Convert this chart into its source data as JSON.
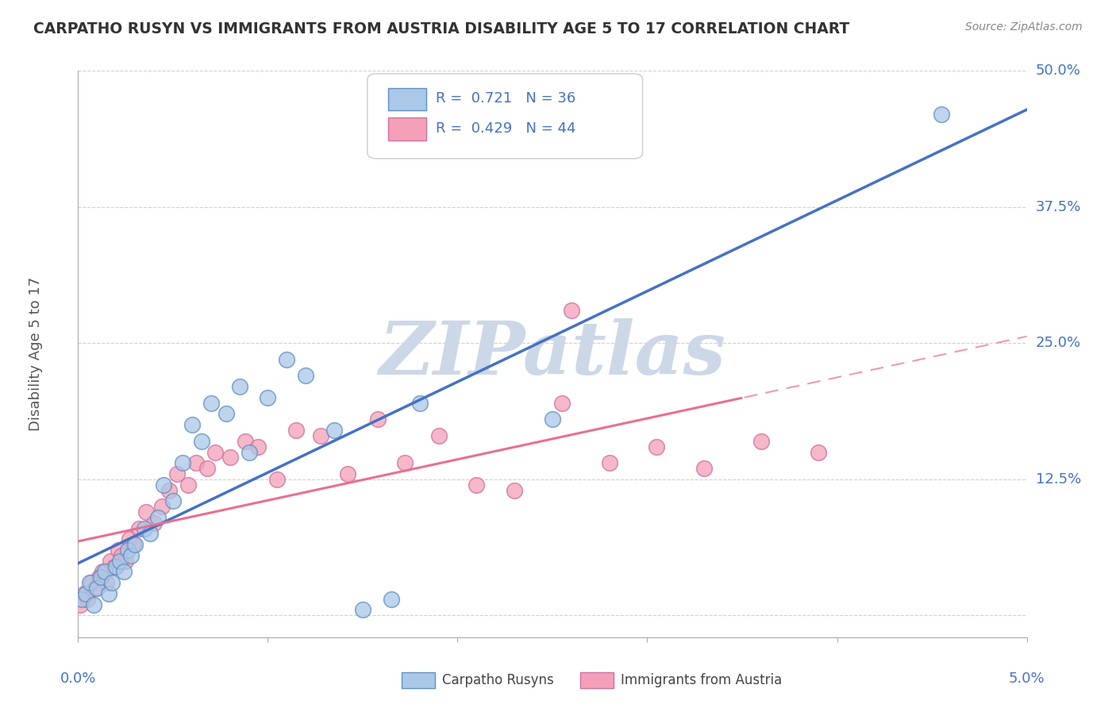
{
  "title": "CARPATHO RUSYN VS IMMIGRANTS FROM AUSTRIA DISABILITY AGE 5 TO 17 CORRELATION CHART",
  "source": "Source: ZipAtlas.com",
  "ylabel": "Disability Age 5 to 17",
  "x_min": 0.0,
  "x_max": 5.0,
  "y_min": -2.0,
  "y_max": 50.0,
  "y_ticks": [
    0.0,
    12.5,
    25.0,
    37.5,
    50.0
  ],
  "y_tick_labels": [
    "",
    "12.5%",
    "25.0%",
    "37.5%",
    "50.0%"
  ],
  "blue_scatter_x": [
    0.02,
    0.04,
    0.06,
    0.08,
    0.1,
    0.12,
    0.14,
    0.16,
    0.18,
    0.2,
    0.22,
    0.24,
    0.26,
    0.28,
    0.3,
    0.35,
    0.38,
    0.42,
    0.45,
    0.5,
    0.55,
    0.6,
    0.65,
    0.7,
    0.78,
    0.85,
    0.9,
    1.0,
    1.1,
    1.2,
    1.35,
    1.5,
    1.65,
    1.8,
    2.5,
    4.55
  ],
  "blue_scatter_y": [
    1.5,
    2.0,
    3.0,
    1.0,
    2.5,
    3.5,
    4.0,
    2.0,
    3.0,
    4.5,
    5.0,
    4.0,
    6.0,
    5.5,
    6.5,
    8.0,
    7.5,
    9.0,
    12.0,
    10.5,
    14.0,
    17.5,
    16.0,
    19.5,
    18.5,
    21.0,
    15.0,
    20.0,
    23.5,
    22.0,
    17.0,
    0.5,
    1.5,
    19.5,
    18.0,
    46.0
  ],
  "pink_scatter_x": [
    0.01,
    0.03,
    0.05,
    0.07,
    0.09,
    0.11,
    0.13,
    0.15,
    0.17,
    0.19,
    0.21,
    0.23,
    0.25,
    0.27,
    0.29,
    0.32,
    0.36,
    0.4,
    0.44,
    0.48,
    0.52,
    0.58,
    0.62,
    0.68,
    0.72,
    0.8,
    0.88,
    0.95,
    1.05,
    1.15,
    1.28,
    1.42,
    1.58,
    1.72,
    1.9,
    2.1,
    2.3,
    2.55,
    2.8,
    3.05,
    3.3,
    3.6,
    3.9,
    2.6
  ],
  "pink_scatter_y": [
    1.0,
    2.0,
    1.5,
    3.0,
    2.5,
    3.5,
    4.0,
    3.0,
    5.0,
    4.5,
    6.0,
    5.5,
    5.0,
    7.0,
    6.5,
    8.0,
    9.5,
    8.5,
    10.0,
    11.5,
    13.0,
    12.0,
    14.0,
    13.5,
    15.0,
    14.5,
    16.0,
    15.5,
    12.5,
    17.0,
    16.5,
    13.0,
    18.0,
    14.0,
    16.5,
    12.0,
    11.5,
    19.5,
    14.0,
    15.5,
    13.5,
    16.0,
    15.0,
    28.0
  ],
  "blue_line_color": "#4472c4",
  "pink_line_color": "#e87090",
  "blue_scatter_color": "#aac8e8",
  "blue_edge_color": "#6090c0",
  "pink_scatter_color": "#f4a0b8",
  "pink_edge_color": "#d070a0",
  "background_color": "#ffffff",
  "grid_color": "#cccccc",
  "watermark_text": "ZIPatlas",
  "watermark_color": "#ccd8e8"
}
